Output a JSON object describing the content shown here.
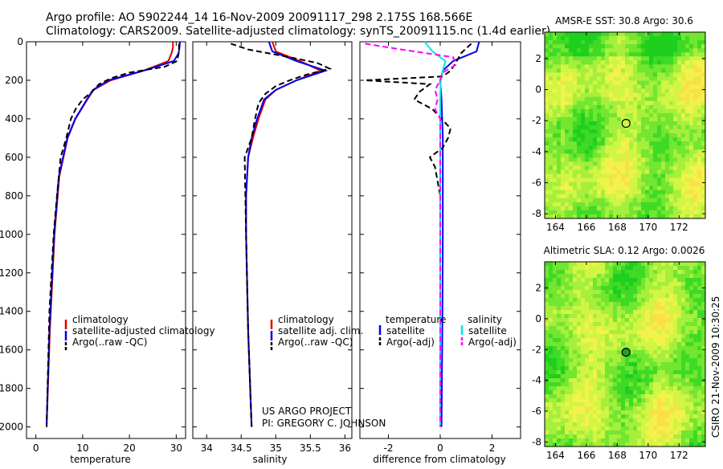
{
  "header": {
    "line1": "Argo profile: AO 5902244_14 16-Nov-2009 20091117_298 2.175S 168.566E",
    "line2": "Climatology: CARS2009. Satellite-adjusted climatology: synTS_20091115.nc (1.4d earlier)"
  },
  "colors": {
    "climatology": "#e00000",
    "satellite": "#0000ee",
    "argo": "#000000",
    "sat_sal": "#00e5e5",
    "argo_sal": "#ff00ff"
  },
  "chart_data": [
    {
      "type": "line",
      "name": "temperature-profile",
      "xlabel": "temperature",
      "ylabel": "",
      "xlim": [
        -2,
        32
      ],
      "ylim": [
        2060,
        0
      ],
      "xticks": [
        0,
        10,
        20,
        30
      ],
      "yticks": [
        0,
        200,
        400,
        600,
        800,
        1000,
        1200,
        1400,
        1600,
        1800,
        2000
      ],
      "series": [
        {
          "name": "climatology",
          "style": "solid",
          "depth": [
            0,
            30,
            60,
            100,
            150,
            200,
            250,
            300,
            400,
            500,
            700,
            1000,
            1500,
            2000
          ],
          "values": [
            29.3,
            29.3,
            29.0,
            28.3,
            23.0,
            16.0,
            12.3,
            11.0,
            8.5,
            6.8,
            5.0,
            4.0,
            3.0,
            2.3
          ]
        },
        {
          "name": "satellite-adjusted climatology",
          "style": "solid",
          "depth": [
            0,
            30,
            60,
            100,
            150,
            200,
            250,
            300,
            400,
            500,
            700,
            1000,
            1500,
            2000
          ],
          "values": [
            30.8,
            30.7,
            30.5,
            29.5,
            23.0,
            15.5,
            12.2,
            10.9,
            8.4,
            6.7,
            4.9,
            3.9,
            2.9,
            2.3
          ]
        },
        {
          "name": "Argo(..raw -QC)",
          "style": "dash",
          "depth": [
            10,
            50,
            100,
            130,
            160,
            190,
            220,
            260,
            300,
            350,
            400,
            500,
            600,
            800,
            1000,
            1400,
            2000
          ],
          "values": [
            30.6,
            30.6,
            30.2,
            27.5,
            20.0,
            16.0,
            13.5,
            12.0,
            10.0,
            8.5,
            7.5,
            6.5,
            5.3,
            4.5,
            3.8,
            2.9,
            2.3
          ]
        }
      ],
      "legend": [
        "climatology",
        "satellite-adjusted climatology",
        "Argo(..raw -QC)"
      ]
    },
    {
      "type": "line",
      "name": "salinity-profile",
      "xlabel": "salinity",
      "ylabel": "",
      "xlim": [
        33.8,
        36.1
      ],
      "ylim": [
        2060,
        0
      ],
      "xticks": [
        34,
        34.5,
        35,
        35.5,
        36
      ],
      "series": [
        {
          "name": "climatology",
          "style": "solid",
          "depth": [
            0,
            50,
            100,
            150,
            200,
            250,
            300,
            400,
            500,
            600,
            800,
            1000,
            1500,
            2000
          ],
          "values": [
            34.95,
            35.0,
            35.35,
            35.65,
            35.3,
            35.0,
            34.85,
            34.75,
            34.67,
            34.6,
            34.57,
            34.57,
            34.6,
            34.65
          ]
        },
        {
          "name": "satellite adj. clim.",
          "style": "solid",
          "depth": [
            0,
            50,
            100,
            150,
            200,
            250,
            300,
            400,
            500,
            600,
            800,
            1000,
            1500,
            2000
          ],
          "values": [
            34.9,
            34.95,
            35.3,
            35.72,
            35.3,
            35.0,
            34.83,
            34.73,
            34.65,
            34.6,
            34.57,
            34.57,
            34.6,
            34.65
          ]
        },
        {
          "name": "Argo(..raw -QC)",
          "style": "dash",
          "depth": [
            10,
            40,
            80,
            110,
            140,
            170,
            200,
            230,
            270,
            320,
            400,
            500,
            600,
            800,
            1000,
            1500,
            2000
          ],
          "values": [
            34.35,
            34.6,
            35.2,
            35.6,
            35.78,
            35.45,
            35.2,
            35.0,
            34.85,
            34.75,
            34.7,
            34.65,
            34.55,
            34.56,
            34.57,
            34.6,
            34.65
          ]
        }
      ],
      "legend": [
        "climatology",
        "satellite adj. clim.",
        "Argo(..raw -QC)"
      ]
    },
    {
      "type": "line",
      "name": "difference-profile",
      "xlabel": "difference from climatology",
      "ylabel": "",
      "xlim": [
        -3.1,
        3.1
      ],
      "ylim": [
        2060,
        0
      ],
      "xticks": [
        -2,
        0,
        2
      ],
      "series": [
        {
          "name": "satellite (temperature)",
          "style": "solid",
          "depth": [
            0,
            50,
            100,
            150,
            200,
            300,
            500,
            1000,
            1500,
            2000
          ],
          "values": [
            1.5,
            1.4,
            0.5,
            0.1,
            0.0,
            0.05,
            0.1,
            0.1,
            0.08,
            0.05
          ]
        },
        {
          "name": "Argo(-adj) (temperature)",
          "style": "dash",
          "depth": [
            10,
            60,
            110,
            150,
            180,
            200,
            220,
            260,
            300,
            350,
            450,
            500,
            550,
            600,
            650,
            800,
            1000,
            1500,
            2000
          ],
          "values": [
            1.2,
            0.8,
            0.6,
            0.4,
            0.1,
            -2.9,
            -0.4,
            -0.8,
            -1.0,
            -0.3,
            0.4,
            0.3,
            0.1,
            -0.4,
            -0.2,
            0.0,
            0.0,
            0.0,
            0.0
          ]
        },
        {
          "name": "satellite (salinity)",
          "style": "solid",
          "depth": [
            0,
            50,
            100,
            150,
            200,
            300,
            500,
            1000,
            1500,
            2000
          ],
          "values": [
            -0.6,
            -0.3,
            0.2,
            0.1,
            0.02,
            0.0,
            0.0,
            0.0,
            0.0,
            0.0
          ]
        },
        {
          "name": "Argo(-adj) (salinity)",
          "style": "dash",
          "depth": [
            10,
            40,
            80,
            120,
            160,
            200,
            250,
            300,
            350,
            400,
            500,
            800,
            1500,
            2000
          ],
          "values": [
            -2.9,
            -1.5,
            0.5,
            0.6,
            0.1,
            0.0,
            -0.2,
            -0.1,
            -0.2,
            0.0,
            0.0,
            0.0,
            0.0,
            0.0
          ]
        }
      ],
      "legend_titles": [
        "temperature",
        "salinity"
      ],
      "legend": {
        "temperature": [
          "satellite",
          "Argo(-adj)"
        ],
        "salinity": [
          "satellite",
          "Argo(-adj)"
        ]
      }
    },
    {
      "type": "heatmap",
      "name": "sst-map",
      "title": "AMSR-E SST: 30.8 Argo: 30.6",
      "xlim": [
        163.3,
        173.7
      ],
      "ylim": [
        -8.3,
        3.7
      ],
      "xticks": [
        164,
        166,
        168,
        170,
        172
      ],
      "yticks": [
        2,
        0,
        -2,
        -4,
        -6,
        -8
      ],
      "argo_position": [
        168.566,
        -2.175
      ]
    },
    {
      "type": "heatmap",
      "name": "sla-map",
      "title": "Altimetric SLA: 0.12 Argo: 0.0026",
      "xlim": [
        163.3,
        173.7
      ],
      "ylim": [
        -8.3,
        3.7
      ],
      "xticks": [
        164,
        166,
        168,
        170,
        172
      ],
      "yticks": [
        2,
        0,
        -2,
        -4,
        -6,
        -8
      ],
      "argo_position": [
        168.566,
        -2.175
      ]
    }
  ],
  "project": {
    "line1": "US ARGO PROJECT",
    "line2": "PI: GREGORY C. JOHNSON"
  },
  "footer_stamp": "CSIRO 21-Nov-2009 10:30:25"
}
